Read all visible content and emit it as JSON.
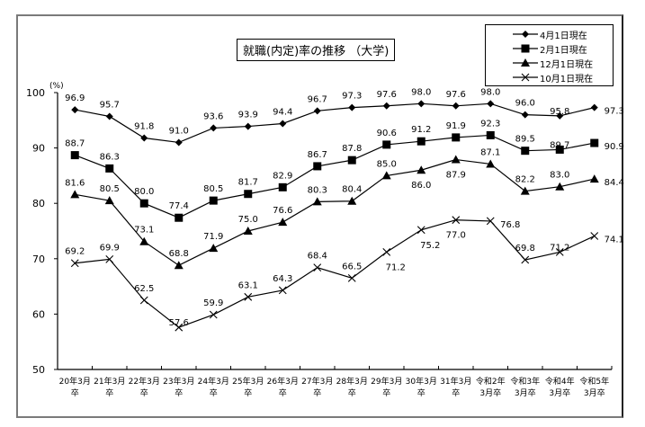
{
  "chart_data": {
    "type": "line",
    "title": "就職(内定)率の推移 （大学)",
    "ylabel": "(%)",
    "xlabel": "",
    "ylim": [
      50,
      100
    ],
    "yticks": [
      50,
      60,
      70,
      80,
      90,
      100
    ],
    "grid": false,
    "legend_position": "top-right",
    "categories": [
      [
        "20年3月",
        "卒"
      ],
      [
        "21年3月",
        "卒"
      ],
      [
        "22年3月",
        "卒"
      ],
      [
        "23年3月",
        "卒"
      ],
      [
        "24年3月",
        "卒"
      ],
      [
        "25年3月",
        "卒"
      ],
      [
        "26年3月",
        "卒"
      ],
      [
        "27年3月",
        "卒"
      ],
      [
        "28年3月",
        "卒"
      ],
      [
        "29年3月",
        "卒"
      ],
      [
        "30年3月",
        "卒"
      ],
      [
        "31年3月",
        "卒"
      ],
      [
        "令和2年",
        "3月卒"
      ],
      [
        "令和3年",
        "3月卒"
      ],
      [
        "令和4年",
        "3月卒"
      ],
      [
        "令和5年",
        "3月卒"
      ]
    ],
    "series": [
      {
        "name": "4月1日現在",
        "marker": "diamond",
        "values": [
          96.9,
          95.7,
          91.8,
          91.0,
          93.6,
          93.9,
          94.4,
          96.7,
          97.3,
          97.6,
          98.0,
          97.6,
          98.0,
          96.0,
          95.8,
          97.3
        ]
      },
      {
        "name": "2月1日現在",
        "marker": "square",
        "values": [
          88.7,
          86.3,
          80.0,
          77.4,
          80.5,
          81.7,
          82.9,
          86.7,
          87.8,
          90.6,
          91.2,
          91.9,
          92.3,
          89.5,
          89.7,
          90.9
        ]
      },
      {
        "name": "12月1日現在",
        "marker": "triangle",
        "values": [
          81.6,
          80.5,
          73.1,
          68.8,
          71.9,
          75.0,
          76.6,
          80.3,
          80.4,
          85.0,
          86.0,
          87.9,
          87.1,
          82.2,
          83.0,
          84.4
        ]
      },
      {
        "name": "10月1日現在",
        "marker": "x",
        "values": [
          69.2,
          69.9,
          62.5,
          57.6,
          59.9,
          63.1,
          64.3,
          68.4,
          66.5,
          71.2,
          75.2,
          77.0,
          76.8,
          69.8,
          71.2,
          74.1
        ]
      }
    ],
    "label_offsets": [
      [
        [
          0,
          -14
        ],
        [
          0,
          -14
        ],
        [
          0,
          -14
        ],
        [
          0,
          -14
        ],
        [
          0,
          -14
        ],
        [
          0,
          -14
        ],
        [
          0,
          -14
        ],
        [
          0,
          -14
        ],
        [
          0,
          -14
        ],
        [
          0,
          -14
        ],
        [
          0,
          -14
        ],
        [
          0,
          -14
        ],
        [
          0,
          -14
        ],
        [
          0,
          -14
        ],
        [
          0,
          -6
        ],
        [
          22,
          3
        ]
      ],
      [
        [
          0,
          -14
        ],
        [
          0,
          -14
        ],
        [
          0,
          -14
        ],
        [
          0,
          -14
        ],
        [
          0,
          -14
        ],
        [
          0,
          -14
        ],
        [
          0,
          -14
        ],
        [
          0,
          -14
        ],
        [
          0,
          -14
        ],
        [
          0,
          -14
        ],
        [
          0,
          -14
        ],
        [
          0,
          -14
        ],
        [
          0,
          -14
        ],
        [
          0,
          -14
        ],
        [
          0,
          -6
        ],
        [
          22,
          3
        ]
      ],
      [
        [
          0,
          -14
        ],
        [
          0,
          -14
        ],
        [
          0,
          -14
        ],
        [
          0,
          -14
        ],
        [
          0,
          -14
        ],
        [
          0,
          -14
        ],
        [
          0,
          -14
        ],
        [
          0,
          -14
        ],
        [
          0,
          -14
        ],
        [
          0,
          -14
        ],
        [
          0,
          16
        ],
        [
          0,
          16
        ],
        [
          0,
          -14
        ],
        [
          0,
          -14
        ],
        [
          0,
          -14
        ],
        [
          22,
          3
        ]
      ],
      [
        [
          0,
          -14
        ],
        [
          0,
          -14
        ],
        [
          0,
          -14
        ],
        [
          0,
          -6
        ],
        [
          0,
          -14
        ],
        [
          0,
          -14
        ],
        [
          0,
          -14
        ],
        [
          0,
          -14
        ],
        [
          0,
          -14
        ],
        [
          10,
          16
        ],
        [
          10,
          16
        ],
        [
          0,
          16
        ],
        [
          22,
          3
        ],
        [
          0,
          -14
        ],
        [
          0,
          -6
        ],
        [
          22,
          3
        ]
      ]
    ]
  }
}
